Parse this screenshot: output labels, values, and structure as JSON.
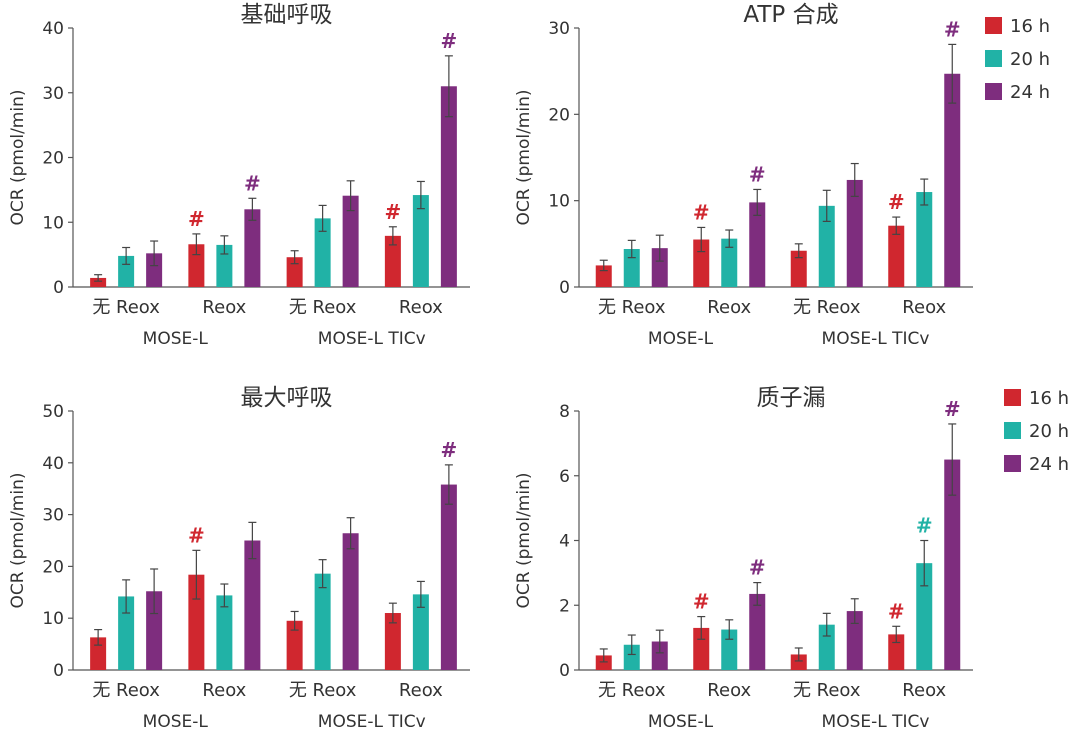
{
  "colors": {
    "16 h": "#d0272f",
    "20 h": "#21b2a6",
    "24 h": "#7e2d7e",
    "axis": "#555555",
    "error": "#444444"
  },
  "legend": [
    "16 h",
    "20 h",
    "24 h"
  ],
  "chart_data": [
    {
      "type": "bar",
      "title": "基础呼吸",
      "ylabel": "OCR (pmol/min)",
      "ylim": [
        0,
        40
      ],
      "yticks": [
        0,
        10,
        20,
        30,
        40
      ],
      "categories": [
        "无 Reox",
        "Reox",
        "无 Reox",
        "Reox"
      ],
      "groups": [
        "MOSE-L",
        "MOSE-L TICv"
      ],
      "series": [
        {
          "name": "16 h",
          "values": [
            1.4,
            6.6,
            4.6,
            7.9
          ],
          "errors": [
            0.5,
            1.6,
            1.0,
            1.4
          ],
          "marks": [
            "",
            "#",
            "",
            "#"
          ]
        },
        {
          "name": "20 h",
          "values": [
            4.8,
            6.5,
            10.6,
            14.2
          ],
          "errors": [
            1.3,
            1.4,
            2.0,
            2.1
          ],
          "marks": [
            "",
            "",
            "",
            ""
          ]
        },
        {
          "name": "24 h",
          "values": [
            5.2,
            12.0,
            14.1,
            31.0
          ],
          "errors": [
            1.9,
            1.7,
            2.3,
            4.7
          ],
          "marks": [
            "",
            "#",
            "",
            "#"
          ]
        }
      ]
    },
    {
      "type": "bar",
      "title": "ATP 合成",
      "ylabel": "OCR (pmol/min)",
      "ylim": [
        0,
        30
      ],
      "yticks": [
        0,
        10,
        20,
        30
      ],
      "categories": [
        "无 Reox",
        "Reox",
        "无 Reox",
        "Reox"
      ],
      "groups": [
        "MOSE-L",
        "MOSE-L TICv"
      ],
      "series": [
        {
          "name": "16 h",
          "values": [
            2.5,
            5.5,
            4.2,
            7.1
          ],
          "errors": [
            0.6,
            1.4,
            0.8,
            1.0
          ],
          "marks": [
            "",
            "#",
            "",
            "#"
          ]
        },
        {
          "name": "20 h",
          "values": [
            4.4,
            5.6,
            9.4,
            11.0
          ],
          "errors": [
            1.0,
            1.0,
            1.8,
            1.5
          ],
          "marks": [
            "",
            "",
            "",
            ""
          ]
        },
        {
          "name": "24 h",
          "values": [
            4.5,
            9.8,
            12.4,
            24.7
          ],
          "errors": [
            1.5,
            1.5,
            1.9,
            3.4
          ],
          "marks": [
            "",
            "#",
            "",
            "#"
          ]
        }
      ]
    },
    {
      "type": "bar",
      "title": "最大呼吸",
      "ylabel": "OCR (pmol/min)",
      "ylim": [
        0,
        50
      ],
      "yticks": [
        0,
        10,
        20,
        30,
        40,
        50
      ],
      "categories": [
        "无 Reox",
        "Reox",
        "无 Reox",
        "Reox"
      ],
      "groups": [
        "MOSE-L",
        "MOSE-L TICv"
      ],
      "series": [
        {
          "name": "16 h",
          "values": [
            6.3,
            18.4,
            9.5,
            11.0
          ],
          "errors": [
            1.5,
            4.7,
            1.8,
            1.9
          ],
          "marks": [
            "",
            "#",
            "",
            ""
          ]
        },
        {
          "name": "20 h",
          "values": [
            14.2,
            14.4,
            18.6,
            14.6
          ],
          "errors": [
            3.2,
            2.2,
            2.7,
            2.5
          ],
          "marks": [
            "",
            "",
            "",
            ""
          ]
        },
        {
          "name": "24 h",
          "values": [
            15.2,
            25.0,
            26.4,
            35.8
          ],
          "errors": [
            4.3,
            3.5,
            3.0,
            3.8
          ],
          "marks": [
            "",
            "",
            "",
            "#"
          ]
        }
      ]
    },
    {
      "type": "bar",
      "title": "质子漏",
      "ylabel": "OCR (pmol/min)",
      "ylim": [
        0,
        8
      ],
      "yticks": [
        0,
        2,
        4,
        6,
        8
      ],
      "categories": [
        "无 Reox",
        "Reox",
        "无 Reox",
        "Reox"
      ],
      "groups": [
        "MOSE-L",
        "MOSE-L TICv"
      ],
      "series": [
        {
          "name": "16 h",
          "values": [
            0.45,
            1.3,
            0.48,
            1.1
          ],
          "errors": [
            0.2,
            0.35,
            0.2,
            0.25
          ],
          "marks": [
            "",
            "#",
            "",
            "#"
          ]
        },
        {
          "name": "20 h",
          "values": [
            0.78,
            1.25,
            1.4,
            3.3
          ],
          "errors": [
            0.3,
            0.3,
            0.35,
            0.7
          ],
          "marks": [
            "",
            "",
            "",
            "#"
          ]
        },
        {
          "name": "24 h",
          "values": [
            0.88,
            2.35,
            1.82,
            6.5
          ],
          "errors": [
            0.35,
            0.35,
            0.38,
            1.1
          ],
          "marks": [
            "",
            "#",
            "",
            "#"
          ]
        }
      ]
    }
  ]
}
